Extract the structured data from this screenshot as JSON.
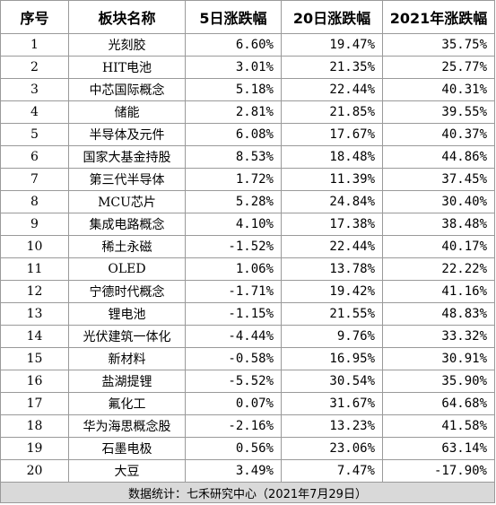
{
  "header": {
    "col_idx": "序号",
    "col_name": "板块名称",
    "col_5d": "5日涨跌幅",
    "col_20d": "20日涨跌幅",
    "col_2021": "2021年涨跌幅"
  },
  "rows": [
    {
      "idx": "1",
      "name": "光刻胶",
      "d5": "6.60%",
      "d20": "19.47%",
      "y2021": "35.75%"
    },
    {
      "idx": "2",
      "name": "HIT电池",
      "d5": "3.01%",
      "d20": "21.35%",
      "y2021": "25.77%"
    },
    {
      "idx": "3",
      "name": "中芯国际概念",
      "d5": "5.18%",
      "d20": "22.44%",
      "y2021": "40.31%"
    },
    {
      "idx": "4",
      "name": "储能",
      "d5": "2.81%",
      "d20": "21.85%",
      "y2021": "39.55%"
    },
    {
      "idx": "5",
      "name": "半导体及元件",
      "d5": "6.08%",
      "d20": "17.67%",
      "y2021": "40.37%"
    },
    {
      "idx": "6",
      "name": "国家大基金持股",
      "d5": "8.53%",
      "d20": "18.48%",
      "y2021": "44.86%"
    },
    {
      "idx": "7",
      "name": "第三代半导体",
      "d5": "1.72%",
      "d20": "11.39%",
      "y2021": "37.45%"
    },
    {
      "idx": "8",
      "name": "MCU芯片",
      "d5": "5.28%",
      "d20": "24.84%",
      "y2021": "30.40%"
    },
    {
      "idx": "9",
      "name": "集成电路概念",
      "d5": "4.10%",
      "d20": "17.38%",
      "y2021": "38.48%"
    },
    {
      "idx": "10",
      "name": "稀土永磁",
      "d5": "-1.52%",
      "d20": "22.44%",
      "y2021": "40.17%"
    },
    {
      "idx": "11",
      "name": "OLED",
      "d5": "1.06%",
      "d20": "13.78%",
      "y2021": "22.22%"
    },
    {
      "idx": "12",
      "name": "宁德时代概念",
      "d5": "-1.71%",
      "d20": "19.42%",
      "y2021": "41.16%"
    },
    {
      "idx": "13",
      "name": "锂电池",
      "d5": "-1.15%",
      "d20": "21.55%",
      "y2021": "48.83%"
    },
    {
      "idx": "14",
      "name": "光伏建筑一体化",
      "d5": "-4.44%",
      "d20": "9.76%",
      "y2021": "33.32%"
    },
    {
      "idx": "15",
      "name": "新材料",
      "d5": "-0.58%",
      "d20": "16.95%",
      "y2021": "30.91%"
    },
    {
      "idx": "16",
      "name": "盐湖提锂",
      "d5": "-5.52%",
      "d20": "30.54%",
      "y2021": "35.90%"
    },
    {
      "idx": "17",
      "name": "氟化工",
      "d5": "0.07%",
      "d20": "31.67%",
      "y2021": "64.68%"
    },
    {
      "idx": "18",
      "name": "华为海思概念股",
      "d5": "-2.16%",
      "d20": "13.23%",
      "y2021": "41.58%"
    },
    {
      "idx": "19",
      "name": "石墨电极",
      "d5": "0.56%",
      "d20": "23.06%",
      "y2021": "63.14%"
    },
    {
      "idx": "20",
      "name": "大豆",
      "d5": "3.49%",
      "d20": "7.47%",
      "y2021": "-17.90%"
    }
  ],
  "footer": {
    "source": "数据统计：七禾研究中心（2021年7月29日）"
  }
}
